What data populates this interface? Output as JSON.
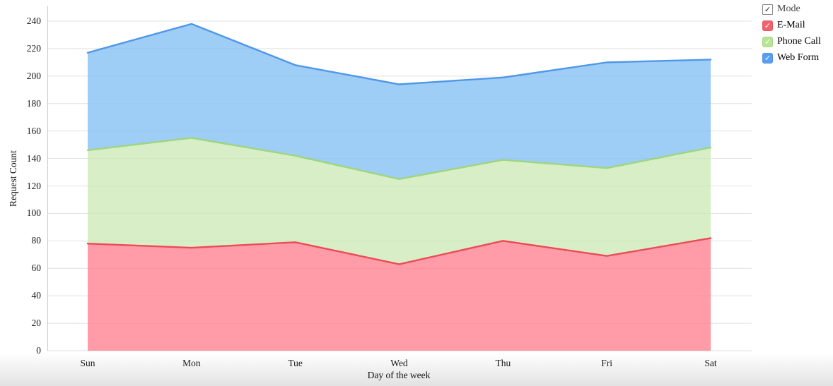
{
  "chart_data": {
    "type": "area",
    "stacked": true,
    "categories": [
      "Sun",
      "Mon",
      "Tue",
      "Wed",
      "Thu",
      "Fri",
      "Sat"
    ],
    "series": [
      {
        "name": "E-Mail",
        "values": [
          78,
          75,
          79,
          63,
          80,
          69,
          82
        ],
        "line_color": "#ec4a57",
        "fill_color": "#ff9ca7",
        "legend_color": "#f2626c",
        "legend_border": "#e8545f"
      },
      {
        "name": "Phone Call",
        "values": [
          68,
          80,
          63,
          62,
          59,
          64,
          66
        ],
        "line_color": "#9fd67c",
        "fill_color": "#d8eec6",
        "legend_color": "#b9e495",
        "legend_border": "#a6d983"
      },
      {
        "name": "Web Form",
        "values": [
          71,
          83,
          66,
          69,
          60,
          77,
          64
        ],
        "line_color": "#4f97e8",
        "fill_color": "#9ecdf6",
        "legend_color": "#5b9ef0",
        "legend_border": "#4b92e8"
      }
    ],
    "stacked_tops": {
      "E-Mail": [
        78,
        75,
        79,
        63,
        80,
        69,
        82
      ],
      "Phone Call": [
        146,
        155,
        142,
        125,
        139,
        133,
        148
      ],
      "Web Form": [
        217,
        238,
        208,
        194,
        199,
        210,
        212
      ]
    },
    "xlabel": "Day of the week",
    "ylabel": "Request Count",
    "ylim": [
      0,
      240
    ],
    "yticks": [
      0,
      20,
      40,
      60,
      80,
      100,
      120,
      140,
      160,
      180,
      200,
      220,
      240
    ],
    "grid": "horizontal",
    "gridline_color": "#e9e9e9",
    "axis_line_color": "#c9c9c9",
    "legend_position": "top-right"
  },
  "legend": {
    "header": {
      "label": "Mode",
      "checked": true
    },
    "items": [
      {
        "label": "E-Mail",
        "checked": true
      },
      {
        "label": "Phone Call",
        "checked": true
      },
      {
        "label": "Web Form",
        "checked": true
      }
    ],
    "check_glyph": "✓"
  }
}
